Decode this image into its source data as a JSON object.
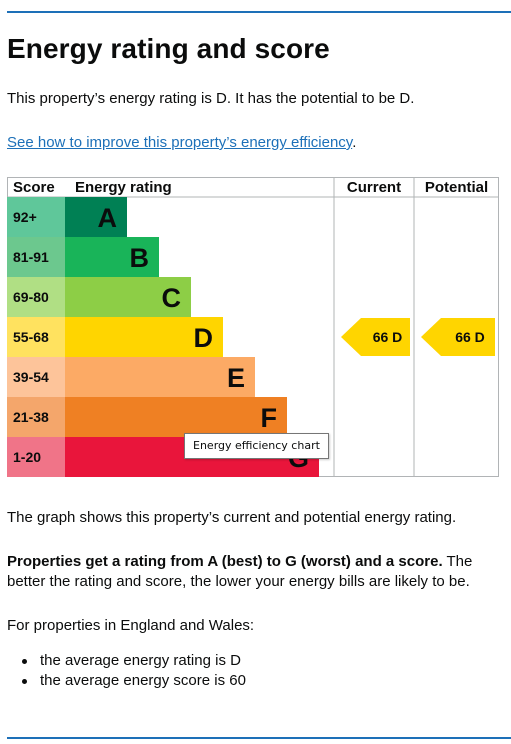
{
  "heading": "Energy rating and score",
  "intro": "This property’s energy rating is D. It has the potential to be D.",
  "improve_link": "See how to improve this property’s energy efficiency",
  "improve_link_suffix": ".",
  "chart_data": {
    "type": "table",
    "columns": {
      "score": "Score",
      "rating": "Energy rating",
      "current": "Current",
      "potential": "Potential"
    },
    "bands": [
      {
        "score": "92+",
        "letter": "A",
        "color": "#008054",
        "bg": "#1ecc7a"
      },
      {
        "score": "81-91",
        "letter": "B",
        "color": "#19b459",
        "bg": "#19b459"
      },
      {
        "score": "69-80",
        "letter": "C",
        "color": "#8dce46",
        "bg": "#8dce46"
      },
      {
        "score": "55-68",
        "letter": "D",
        "color": "#ffd500",
        "bg": "#ffd500"
      },
      {
        "score": "39-54",
        "letter": "E",
        "color": "#fcaa65",
        "bg": "#fcaa65"
      },
      {
        "score": "21-38",
        "letter": "F",
        "color": "#ef8023",
        "bg": "#ef8023"
      },
      {
        "score": "1-20",
        "letter": "G",
        "color": "#e9153b",
        "bg": "#e9153b"
      }
    ],
    "current": {
      "score": 66,
      "letter": "D",
      "label": "66  D"
    },
    "potential": {
      "score": 66,
      "letter": "D",
      "label": "66  D"
    },
    "tooltip": "Energy efficiency chart"
  },
  "graph_caption": "The graph shows this property’s current and potential energy rating.",
  "rating_note_bold": "Properties get a rating from A (best) to G (worst) and a score.",
  "rating_note_rest": " The better the rating and score, the lower your energy bills are likely to be.",
  "region_note": "For properties in England and Wales:",
  "averages": [
    "the average energy rating is D",
    "the average energy score is 60"
  ]
}
